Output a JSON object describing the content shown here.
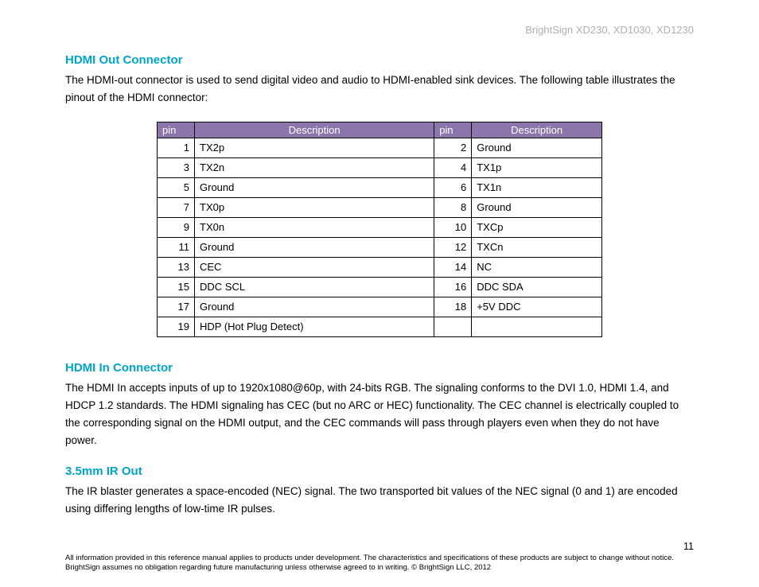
{
  "colors": {
    "heading": "#00a5c8",
    "table_header_bg": "#8b75aa",
    "body_text": "#000000",
    "header_text": "#b0b0b0"
  },
  "header": {
    "product_line": "BrightSign XD230, XD1030, XD1230"
  },
  "section1": {
    "title": "HDMI Out Connector",
    "body": "The HDMI-out connector is used to send digital video and audio to HDMI-enabled sink devices. The following table illustrates the pinout of the HDMI connector:"
  },
  "pinout_table": {
    "header_pin": "pin",
    "header_desc": "Description",
    "rows": [
      {
        "pin_a": "1",
        "desc_a": "TX2p",
        "pin_b": "2",
        "desc_b": "Ground"
      },
      {
        "pin_a": "3",
        "desc_a": "TX2n",
        "pin_b": "4",
        "desc_b": "TX1p"
      },
      {
        "pin_a": "5",
        "desc_a": "Ground",
        "pin_b": "6",
        "desc_b": "TX1n"
      },
      {
        "pin_a": "7",
        "desc_a": "TX0p",
        "pin_b": "8",
        "desc_b": "Ground"
      },
      {
        "pin_a": "9",
        "desc_a": "TX0n",
        "pin_b": "10",
        "desc_b": "TXCp"
      },
      {
        "pin_a": "11",
        "desc_a": "Ground",
        "pin_b": "12",
        "desc_b": "TXCn"
      },
      {
        "pin_a": "13",
        "desc_a": "CEC",
        "pin_b": "14",
        "desc_b": "NC"
      },
      {
        "pin_a": "15",
        "desc_a": "DDC SCL",
        "pin_b": "16",
        "desc_b": "DDC SDA"
      },
      {
        "pin_a": "17",
        "desc_a": "Ground",
        "pin_b": "18",
        "desc_b": "+5V DDC"
      },
      {
        "pin_a": "19",
        "desc_a": "HDP (Hot Plug Detect)",
        "pin_b": "",
        "desc_b": ""
      }
    ]
  },
  "section2": {
    "title": "HDMI In Connector",
    "body": "The HDMI In accepts inputs of up to 1920x1080@60p, with 24-bits RGB. The signaling conforms to the DVI 1.0, HDMI 1.4, and HDCP 1.2 standards. The HDMI signaling has CEC (but no ARC or HEC) functionality. The CEC channel is electrically coupled to the corresponding signal on the HDMI output, and the CEC commands will pass through players even when they do not have power."
  },
  "section3": {
    "title": "3.5mm IR Out",
    "body": "The IR blaster generates a space-encoded (NEC) signal. The two transported bit values of the NEC signal (0 and 1) are encoded using differing lengths of low-time IR pulses."
  },
  "footer": {
    "page_number": "11",
    "disclaimer": "All information provided in this reference manual applies to products under development. The characteristics and specifications of these products are subject to change without notice. BrightSign assumes no obligation regarding future manufacturing unless otherwise agreed to in writing. © BrightSign LLC, 2012"
  }
}
